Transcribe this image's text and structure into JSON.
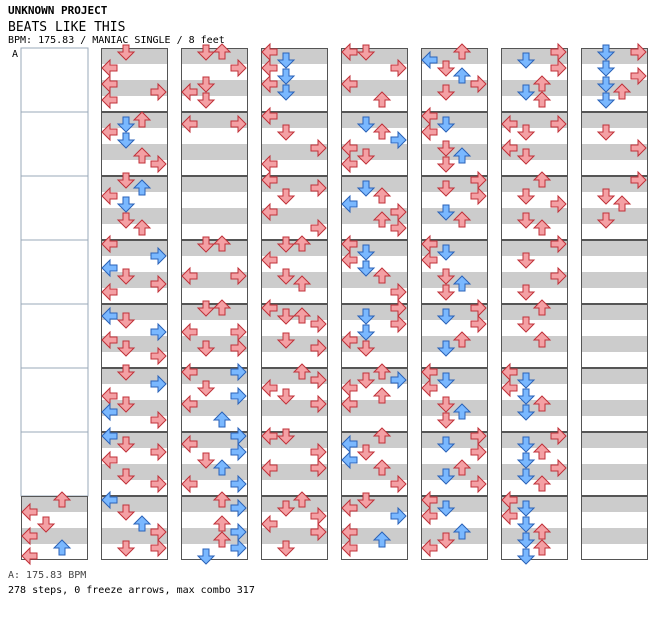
{
  "header": {
    "project": "UNKNOWN PROJECT",
    "title": "BEATS LIKE THIS",
    "info": "BPM: 175.83 / MANIAC SINGLE / 8 feet",
    "section_marker": "A"
  },
  "footer": {
    "bpm_line": "A: 175.83 BPM",
    "stats_line": "278 steps, 0 freeze arrows, max combo 317"
  },
  "chart": {
    "columns": 8,
    "measures_per_column": 8,
    "empty_first_column_measures": 7,
    "colors": {
      "quarter_arrow": "#f4a0a4",
      "quarter_outline": "#c03038",
      "eighth_arrow": "#7ab8ff",
      "eighth_outline": "#2a62b8",
      "band_gray": "#cccccc",
      "band_white": "#ffffff",
      "measure_border": "#555555"
    },
    "lanes": [
      "left",
      "down",
      "up",
      "right"
    ]
  }
}
